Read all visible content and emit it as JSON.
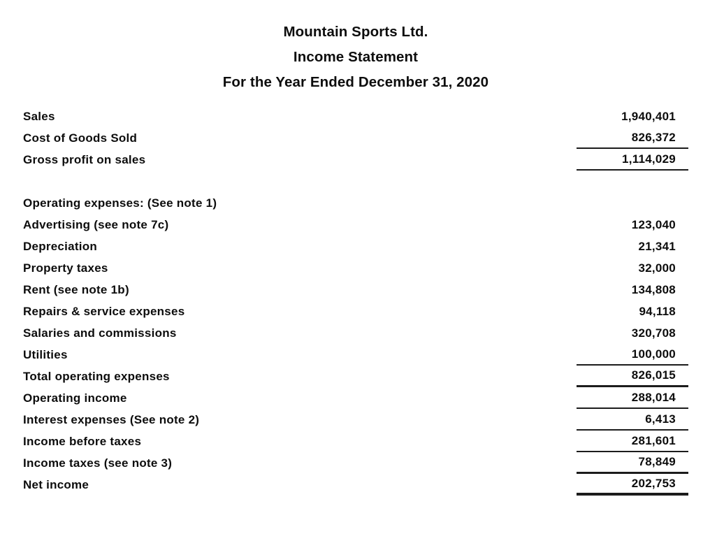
{
  "title": {
    "company": "Mountain Sports Ltd.",
    "statement": "Income Statement",
    "period": "For the Year Ended December 31, 2020"
  },
  "colors": {
    "text": "#0d0d0d",
    "rule": "#1c1c1c",
    "background": "#ffffff"
  },
  "rows": [
    {
      "label": "Sales",
      "amount": "1,940,401",
      "underline": "none",
      "spacer": false
    },
    {
      "label": "Cost of Goods Sold",
      "amount": "826,372",
      "underline": "thin",
      "spacer": false
    },
    {
      "label": "Gross profit on sales",
      "amount": "1,114,029",
      "underline": "thin",
      "spacer": false
    },
    {
      "label": "",
      "amount": "",
      "underline": "none",
      "spacer": true
    },
    {
      "label": "Operating expenses: (See note 1)",
      "amount": "",
      "underline": "none",
      "spacer": false
    },
    {
      "label": "Advertising (see note 7c)",
      "amount": "123,040",
      "underline": "none",
      "spacer": false
    },
    {
      "label": "Depreciation",
      "amount": "21,341",
      "underline": "none",
      "spacer": false
    },
    {
      "label": "Property taxes",
      "amount": "32,000",
      "underline": "none",
      "spacer": false
    },
    {
      "label": "Rent (see note 1b)",
      "amount": "134,808",
      "underline": "none",
      "spacer": false
    },
    {
      "label": "Repairs & service expenses",
      "amount": "94,118",
      "underline": "none",
      "spacer": false
    },
    {
      "label": "Salaries and commissions",
      "amount": "320,708",
      "underline": "none",
      "spacer": false
    },
    {
      "label": "Utilities",
      "amount": "100,000",
      "underline": "thin",
      "spacer": false
    },
    {
      "label": "Total operating expenses",
      "amount": "826,015",
      "underline": "thick",
      "spacer": false
    },
    {
      "label": "Operating income",
      "amount": "288,014",
      "underline": "thin",
      "spacer": false
    },
    {
      "label": "Interest expenses (See note 2)",
      "amount": "6,413",
      "underline": "thin",
      "spacer": false
    },
    {
      "label": "Income before taxes",
      "amount": "281,601",
      "underline": "thin",
      "spacer": false
    },
    {
      "label": "Income taxes (see note 3)",
      "amount": "78,849",
      "underline": "thick",
      "spacer": false
    },
    {
      "label": "Net income",
      "amount": "202,753",
      "underline": "heavy",
      "spacer": false
    }
  ]
}
